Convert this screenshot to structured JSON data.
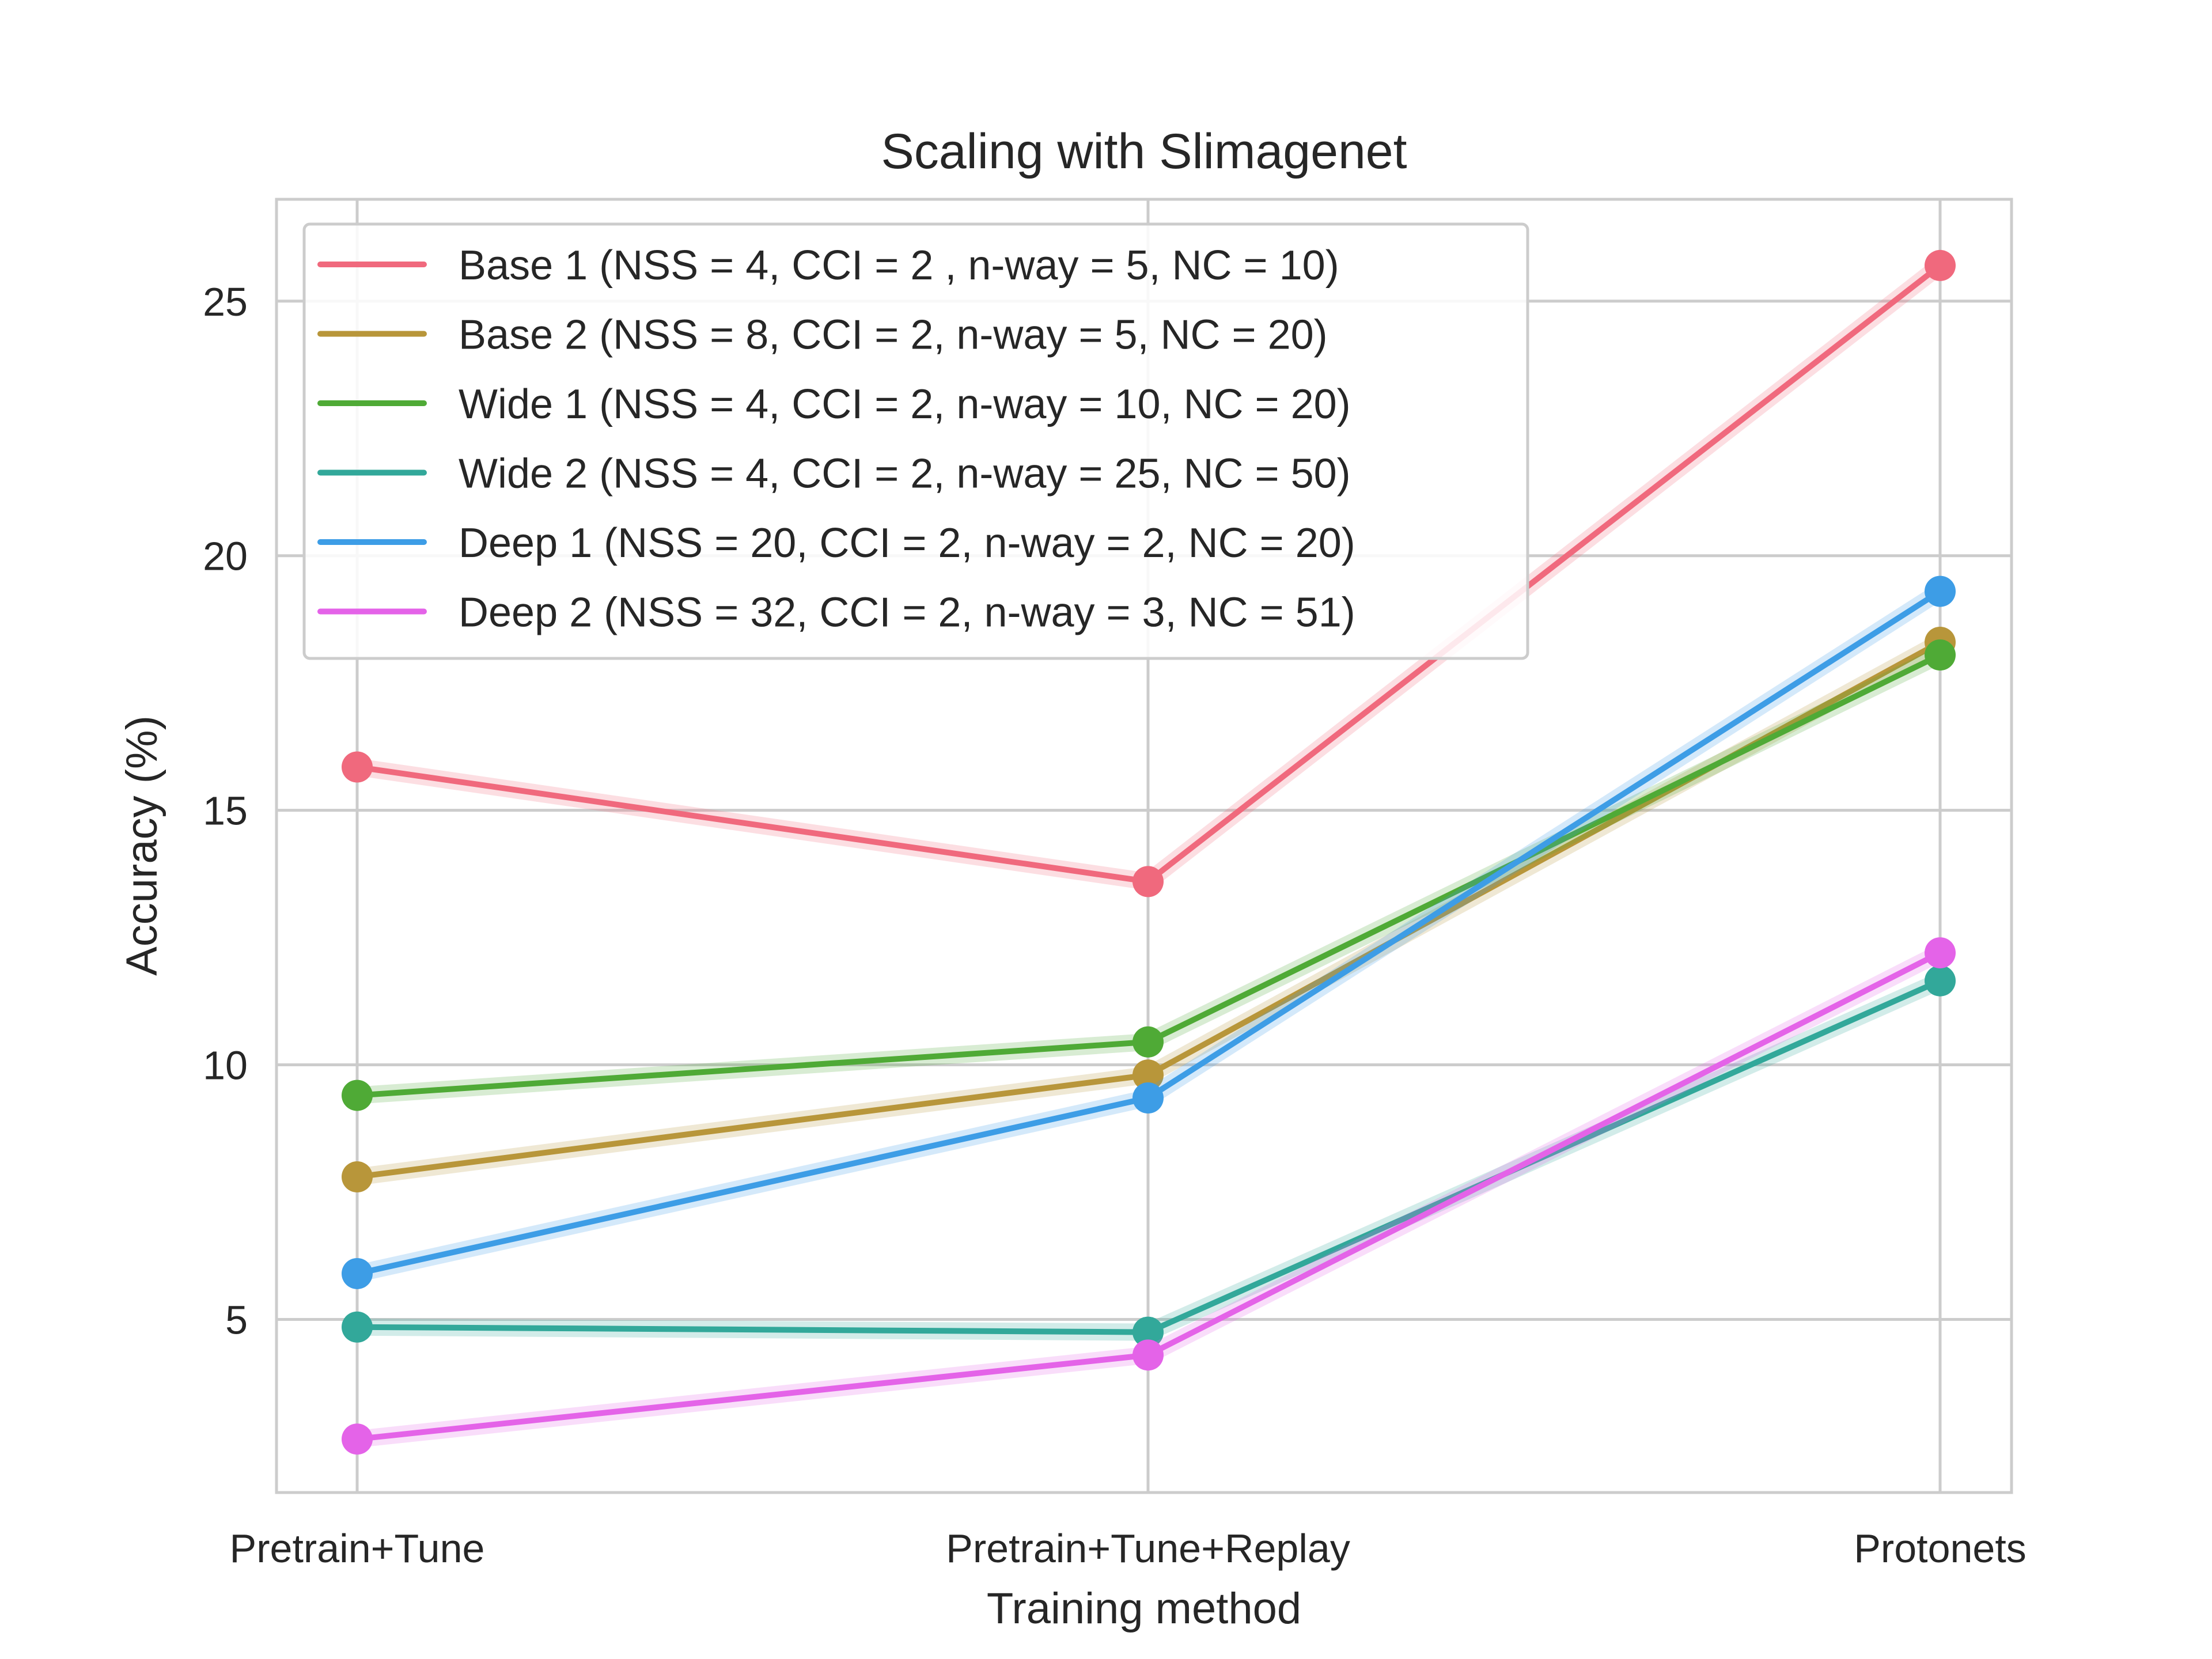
{
  "chart_data": {
    "type": "line",
    "title": "Scaling with Slimagenet",
    "xlabel": "Training method",
    "ylabel": "Accuracy (%)",
    "categories": [
      "Pretrain+Tune",
      "Pretrain+Tune+Replay",
      "Protonets"
    ],
    "ylim": [
      1.6,
      27.0
    ],
    "yticks": [
      5,
      10,
      15,
      20,
      25
    ],
    "grid": true,
    "legend_position": "top-left",
    "series": [
      {
        "name": "Base 1 (NSS = 4, CCI = 2 , n-way = 5, NC = 10)",
        "color": "#f0697d",
        "values": [
          15.85,
          13.6,
          25.7
        ]
      },
      {
        "name": "Base 2 (NSS = 8, CCI = 2, n-way = 5, NC = 20)",
        "color": "#b8963a",
        "values": [
          7.8,
          9.8,
          18.3
        ]
      },
      {
        "name": "Wide 1 (NSS = 4, CCI = 2, n-way = 10, NC = 20)",
        "color": "#4faa36",
        "values": [
          9.4,
          10.45,
          18.05
        ]
      },
      {
        "name": "Wide 2 (NSS = 4, CCI = 2, n-way = 25, NC = 50)",
        "color": "#32a89a",
        "values": [
          4.85,
          4.75,
          11.65
        ]
      },
      {
        "name": "Deep 1 (NSS = 20, CCI = 2, n-way = 2, NC = 20)",
        "color": "#3d9de6",
        "values": [
          5.9,
          9.35,
          19.3
        ]
      },
      {
        "name": "Deep 2 (NSS = 32, CCI = 2, n-way = 3, NC = 51)",
        "color": "#e463e8",
        "values": [
          2.65,
          4.3,
          12.2
        ]
      }
    ]
  }
}
